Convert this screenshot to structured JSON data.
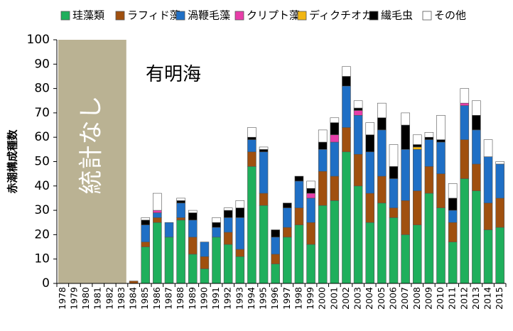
{
  "chart_data": {
    "type": "bar",
    "stacked": true,
    "title": "有明海",
    "xlabel": "",
    "ylabel": "赤潮構成種数",
    "ylim": [
      0,
      100
    ],
    "y_ticks": [
      0,
      10,
      20,
      30,
      40,
      50,
      60,
      70,
      80,
      90,
      100
    ],
    "grid": false,
    "legend_position": "top",
    "no_data_label": "統計なし",
    "no_data_range": [
      "1978",
      "1983"
    ],
    "categories": [
      "1978",
      "1979",
      "1980",
      "1981",
      "1982",
      "1983",
      "1984",
      "1985",
      "1986",
      "1987",
      "1988",
      "1989",
      "1990",
      "1991",
      "1992",
      "1993",
      "1994",
      "1995",
      "1996",
      "1997",
      "1998",
      "1999",
      "2000",
      "2001",
      "2002",
      "2003",
      "2004",
      "2005",
      "2006",
      "2007",
      "2008",
      "2009",
      "2010",
      "2011",
      "2012",
      "2013",
      "2014",
      "2015"
    ],
    "series": [
      {
        "name": "珪藻類",
        "color": "#1faf5c",
        "values": [
          0,
          0,
          0,
          0,
          0,
          0,
          0,
          15,
          25,
          19,
          26,
          12,
          6,
          19,
          16,
          11,
          48,
          32,
          8,
          19,
          24,
          16,
          32,
          34,
          54,
          40,
          25,
          33,
          27,
          20,
          24,
          37,
          31,
          17,
          43,
          38,
          22,
          23
        ]
      },
      {
        "name": "ラフィド藻",
        "color": "#a0500f",
        "values": [
          0,
          0,
          0,
          0,
          0,
          0,
          1,
          2,
          2,
          0,
          1,
          7,
          5,
          0,
          5,
          3,
          6,
          5,
          4,
          4,
          7,
          9,
          14,
          10,
          10,
          13,
          12,
          11,
          4,
          14,
          14,
          11,
          14,
          8,
          16,
          11,
          11,
          12
        ]
      },
      {
        "name": "渦鞭毛藻",
        "color": "#1f6fc5",
        "values": [
          0,
          0,
          0,
          0,
          0,
          0,
          0,
          7,
          2,
          6,
          6,
          7,
          6,
          4,
          6,
          13,
          5,
          17,
          7,
          8,
          11,
          10,
          9,
          14,
          17,
          16,
          17,
          19,
          12,
          21,
          17,
          11,
          13,
          5,
          14,
          14,
          19,
          14
        ]
      },
      {
        "name": "クリプト藻",
        "color": "#e83ea9",
        "values": [
          0,
          0,
          0,
          0,
          0,
          0,
          0,
          0,
          1,
          0,
          0,
          0,
          0,
          0,
          0,
          0,
          0,
          0,
          0,
          0,
          0,
          2,
          0,
          3,
          0,
          2,
          0,
          0,
          0,
          0,
          0,
          0,
          0,
          0,
          1,
          0,
          0,
          0
        ]
      },
      {
        "name": "ディクチオカ",
        "color": "#f2b611",
        "values": [
          0,
          0,
          0,
          0,
          0,
          0,
          0,
          0,
          0,
          0,
          0,
          0,
          0,
          0,
          0,
          0,
          0,
          0,
          0,
          0,
          0,
          0,
          0,
          0,
          0,
          0,
          0,
          0,
          0,
          0,
          1,
          0,
          0,
          0,
          0,
          0,
          0,
          0
        ]
      },
      {
        "name": "繊毛虫",
        "color": "#000000",
        "values": [
          0,
          0,
          0,
          0,
          0,
          0,
          0,
          2,
          0,
          0,
          1,
          3,
          0,
          2,
          3,
          4,
          1,
          1,
          3,
          2,
          2,
          2,
          3,
          5,
          4,
          1,
          7,
          5,
          5,
          10,
          1,
          1,
          1,
          5,
          0,
          6,
          0,
          0
        ]
      },
      {
        "name": "その他",
        "color": "#ffffff",
        "values": [
          0,
          0,
          0,
          0,
          0,
          0,
          0,
          1,
          7,
          0,
          1,
          1,
          0,
          2,
          1,
          3,
          4,
          1,
          0,
          0,
          0,
          3,
          5,
          2,
          4,
          3,
          5,
          6,
          9,
          5,
          4,
          2,
          10,
          6,
          6,
          6,
          7,
          1
        ]
      }
    ]
  }
}
